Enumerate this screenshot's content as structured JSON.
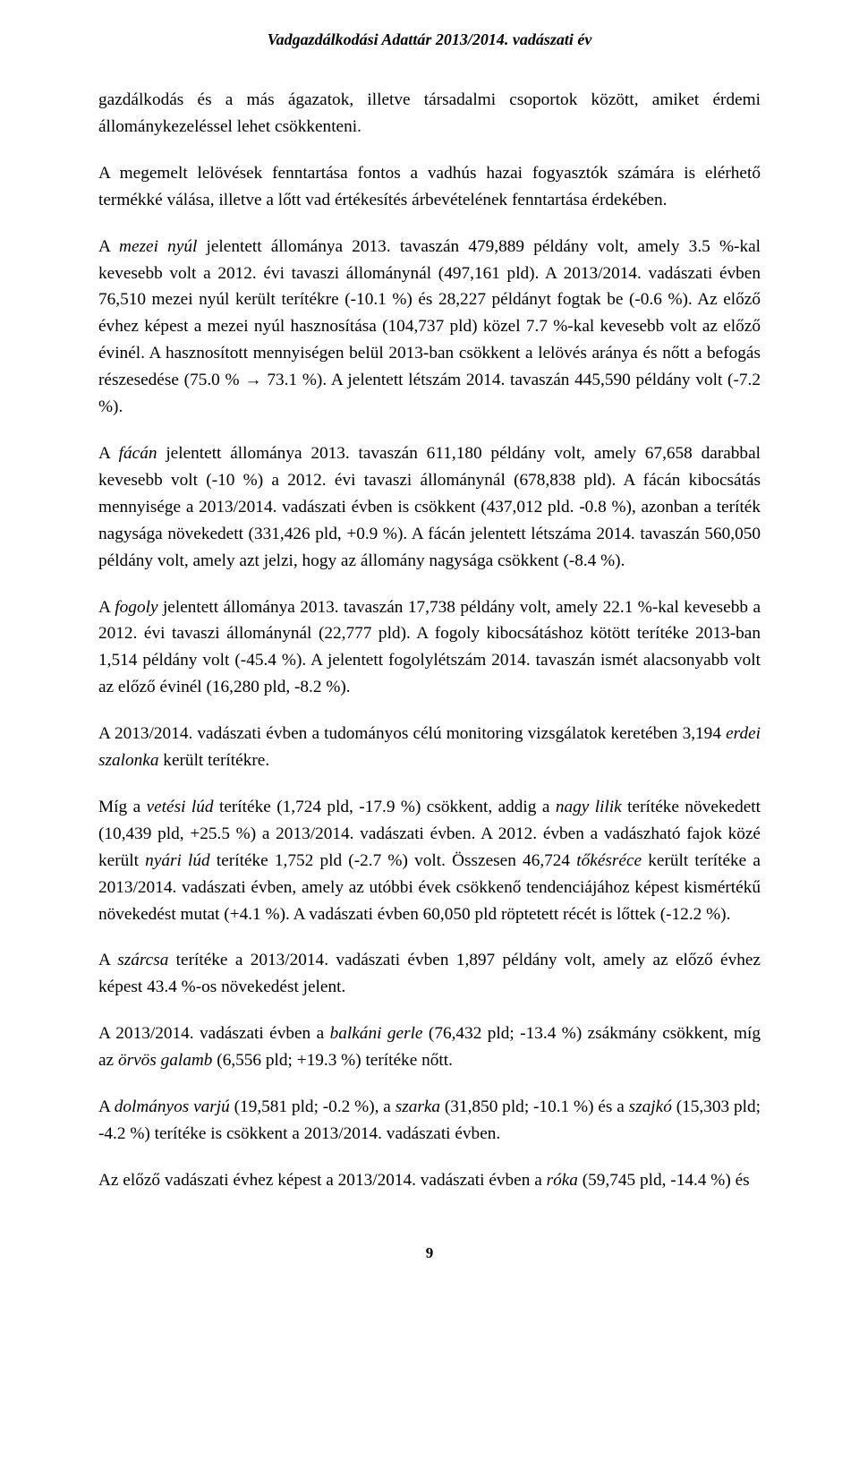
{
  "running_head": "Vadgazdálkodási Adattár 2013/2014. vadászati év",
  "paragraphs": {
    "p1a": "gazdálkodás és a más ágazatok, illetve társadalmi csoportok között, amiket érdemi állománykezeléssel lehet csökkenteni.",
    "p1b": "A megemelt lelövések fenntartása fontos a vadhús hazai fogyasztók számára is elérhető termékké válása, illetve a lőtt vad értékesítés árbevételének fenntartása érdekében.",
    "p2_lead": "A ",
    "p2_it1": "mezei nyúl",
    "p2_rest": " jelentett állománya 2013. tavaszán 479,889 példány volt, amely 3.5 %-kal kevesebb volt a 2012. évi tavaszi állománynál (497,161 pld). A 2013/2014. vadászati évben 76,510 mezei nyúl került terítékre (-10.1 %) és 28,227 példányt fogtak be (-0.6 %). Az előző évhez képest a mezei nyúl hasznosítása (104,737 pld) közel 7.7 %-kal kevesebb volt az előző évinél. A hasznosított mennyiségen belül 2013-ban csökkent a lelövés aránya és nőtt a befogás részesedése (75.0 % → 73.1 %). A jelentett létszám 2014. tavaszán 445,590 példány volt (-7.2 %).",
    "p3_lead": "A ",
    "p3_it1": "fácán",
    "p3_rest": " jelentett állománya 2013. tavaszán 611,180 példány volt, amely 67,658 darabbal kevesebb volt (-10 %) a 2012. évi tavaszi állománynál (678,838 pld). A fácán kibocsátás mennyisége a 2013/2014. vadászati évben is csökkent (437,012 pld. -0.8 %), azonban a teríték nagysága növekedett (331,426 pld, +0.9 %). A fácán jelentett létszáma 2014. tavaszán 560,050 példány volt, amely azt jelzi, hogy az állomány nagysága csökkent (-8.4 %).",
    "p4_lead": "A ",
    "p4_it1": "fogoly",
    "p4_rest": " jelentett állománya 2013. tavaszán 17,738 példány volt, amely 22.1 %-kal kevesebb a 2012. évi tavaszi állománynál (22,777 pld). A fogoly kibocsátáshoz kötött terítéke 2013-ban 1,514 példány volt (-45.4 %). A jelentett fogolylétszám 2014. tavaszán ismét alacsonyabb volt az előző évinél (16,280 pld, -8.2 %).",
    "p5_lead": "A 2013/2014. vadászati évben a tudományos célú monitoring vizsgálatok keretében 3,194 ",
    "p5_it1": "erdei szalonka",
    "p5_rest": " került terítékre.",
    "p6_a": "Míg a ",
    "p6_it1": "vetési lúd",
    "p6_b": " terítéke (1,724 pld, -17.9 %) csökkent, addig a ",
    "p6_it2": "nagy lilik",
    "p6_c": " terítéke növekedett (10,439 pld, +25.5 %) a 2013/2014. vadászati évben. A 2012. évben a vadászható fajok közé került ",
    "p6_it3": "nyári lúd",
    "p6_d": " terítéke 1,752 pld (-2.7 %) volt. Összesen 46,724 ",
    "p6_it4": "tőkésréce",
    "p6_e": " került terítéke a 2013/2014. vadászati évben, amely az utóbbi évek csökkenő tendenciájához képest kismértékű növekedést mutat (+4.1 %). A vadászati évben 60,050 pld röptetett récét is lőttek (-12.2 %).",
    "p7_a": "A ",
    "p7_it1": "szárcsa",
    "p7_b": " terítéke a 2013/2014. vadászati évben 1,897 példány volt, amely az előző évhez képest 43.4 %-os növekedést jelent.",
    "p8_a": "A 2013/2014. vadászati évben a ",
    "p8_it1": "balkáni gerle",
    "p8_b": " (76,432 pld; -13.4 %) zsákmány csökkent, míg az ",
    "p8_it2": "örvös galamb",
    "p8_c": " (6,556 pld; +19.3 %) terítéke nőtt.",
    "p9_a": "A ",
    "p9_it1": "dolmányos varjú",
    "p9_b": " (19,581 pld; -0.2 %), a ",
    "p9_it2": "szarka",
    "p9_c": " (31,850 pld; -10.1 %) és a ",
    "p9_it3": "szajkó",
    "p9_d": " (15,303 pld; -4.2 %) terítéke is csökkent a 2013/2014. vadászati évben.",
    "p10_a": "Az előző vadászati évhez képest a 2013/2014. vadászati évben a ",
    "p10_it1": "róka",
    "p10_b": " (59,745 pld, -14.4 %) és"
  },
  "page_number": "9"
}
